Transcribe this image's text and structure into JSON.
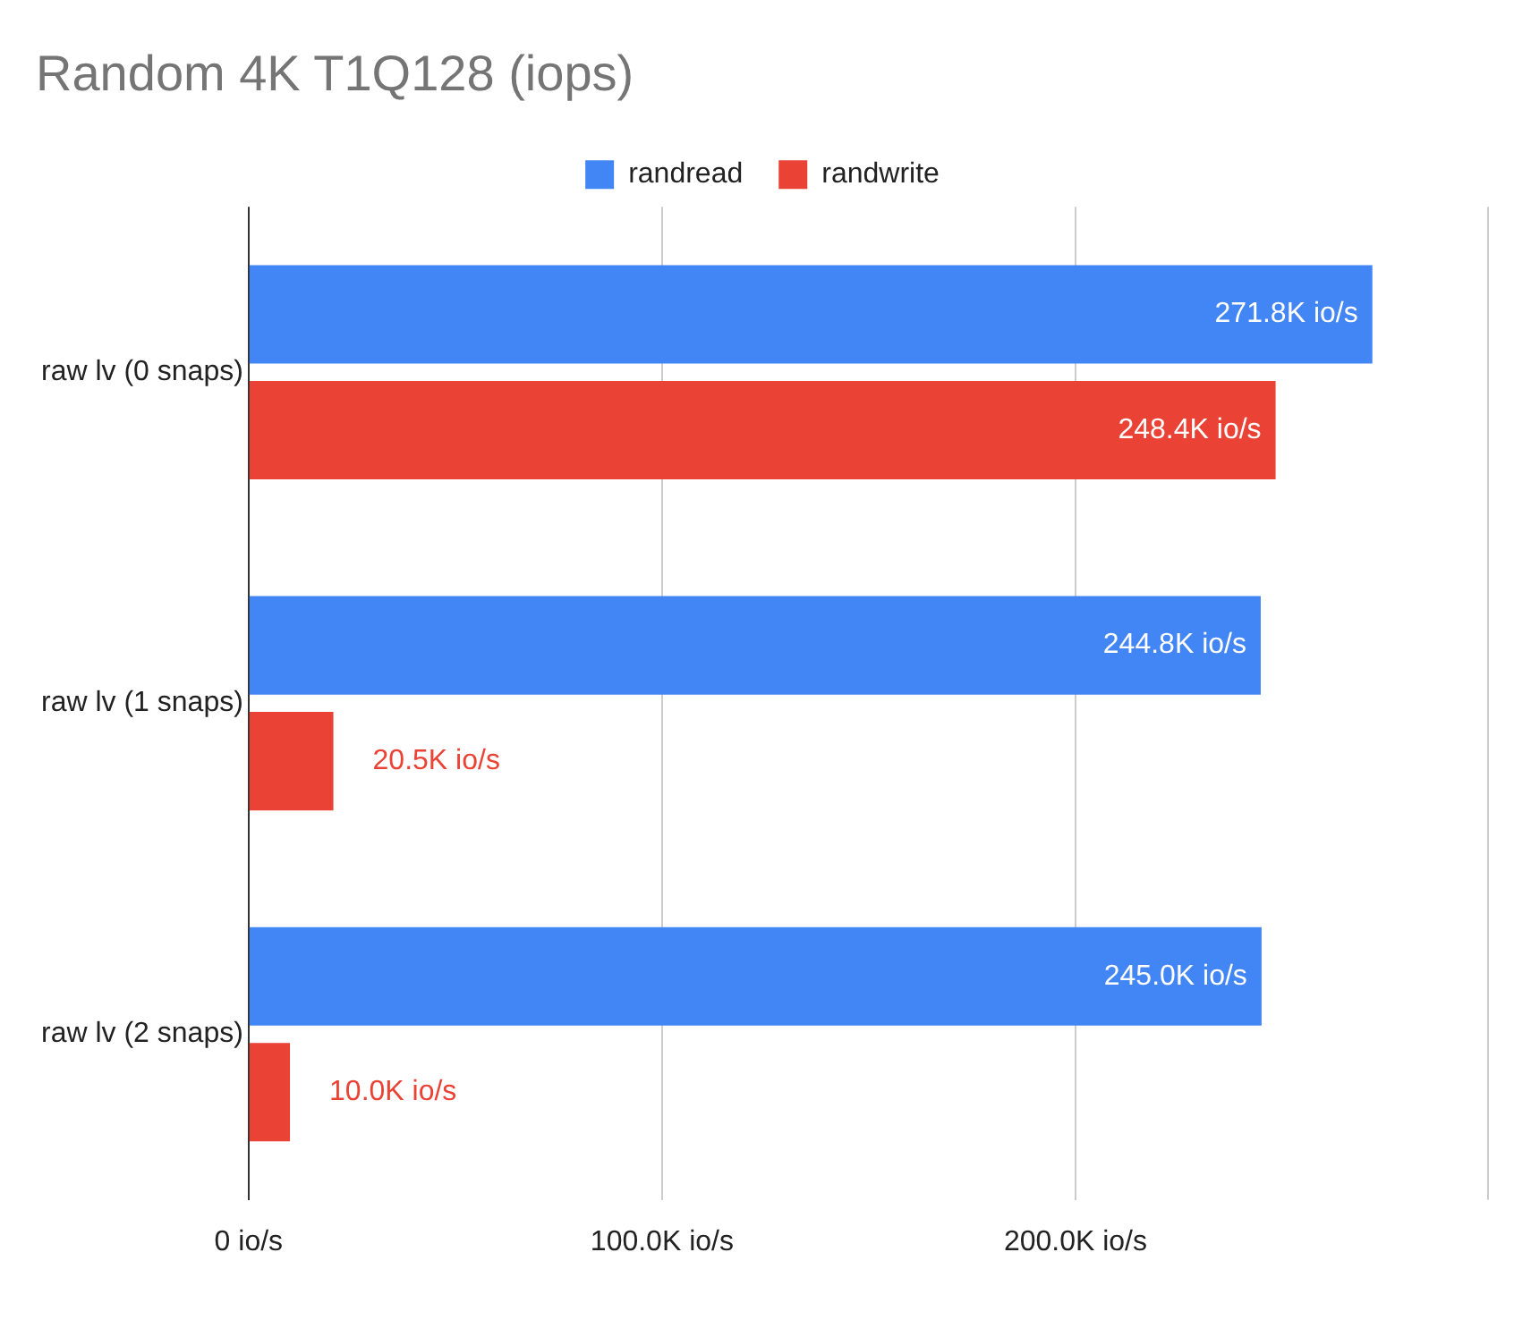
{
  "chart_data": {
    "type": "bar",
    "orientation": "horizontal",
    "title": "Random 4K T1Q128 (iops)",
    "categories": [
      "raw lv (0 snaps)",
      "raw lv (1 snaps)",
      "raw lv (2 snaps)"
    ],
    "series": [
      {
        "name": "randread",
        "color": "#4285f4",
        "values": [
          271800,
          244800,
          245000
        ],
        "value_labels": [
          "271.8K io/s",
          "244.8K io/s",
          "245.0K io/s"
        ]
      },
      {
        "name": "randwrite",
        "color": "#ea4335",
        "values": [
          248400,
          20500,
          10000
        ],
        "value_labels": [
          "248.4K io/s",
          "20.5K io/s",
          "10.0K io/s"
        ]
      }
    ],
    "xlim": [
      0,
      300000
    ],
    "xticks": [
      {
        "value": 0,
        "label": "0 io/s"
      },
      {
        "value": 100000,
        "label": "100.0K io/s"
      },
      {
        "value": 200000,
        "label": "200.0K io/s"
      }
    ],
    "grid": "x",
    "legend": "top"
  }
}
